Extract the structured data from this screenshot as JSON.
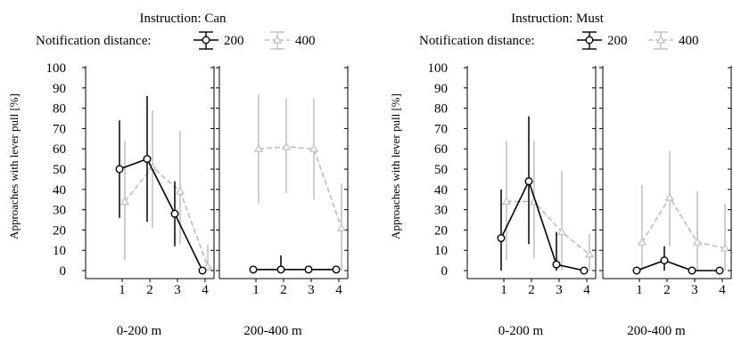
{
  "colors": {
    "s200": "#000000",
    "s400": "#bdbdbd"
  },
  "chart_data": [
    {
      "type": "line",
      "title": "Instruction: Can",
      "legend_label": "Notification distance:",
      "ylabel": "Approaches with lever pull [%]",
      "ylim": [
        0,
        100
      ],
      "yticks": [
        0,
        10,
        20,
        30,
        40,
        50,
        60,
        70,
        80,
        90,
        100
      ],
      "x": [
        1,
        2,
        3,
        4
      ],
      "panels": [
        {
          "label": "0-200 m",
          "series": [
            {
              "name": "200",
              "values": [
                50,
                55,
                28,
                0
              ],
              "lower": [
                26,
                24,
                12,
                0
              ],
              "upper": [
                74,
                86,
                44,
                0
              ]
            },
            {
              "name": "400",
              "values": [
                34,
                51,
                39,
                2
              ],
              "lower": [
                5,
                21,
                13,
                0
              ],
              "upper": [
                64,
                79,
                69,
                13
              ]
            }
          ]
        },
        {
          "label": "200-400 m",
          "series": [
            {
              "name": "200",
              "values": [
                0.5,
                0.5,
                0.5,
                0.5
              ],
              "lower": [
                0,
                0,
                0,
                0
              ],
              "upper": [
                0.5,
                7.5,
                0.5,
                0.5
              ]
            },
            {
              "name": "400",
              "values": [
                60,
                61,
                60,
                21
              ],
              "lower": [
                33,
                38,
                35,
                0
              ],
              "upper": [
                87,
                85,
                85,
                43
              ]
            }
          ]
        }
      ]
    },
    {
      "type": "line",
      "title": "Instruction: Must",
      "legend_label": "Notification distance:",
      "ylabel": "Approaches with lever pull [%]",
      "ylim": [
        0,
        100
      ],
      "yticks": [
        0,
        10,
        20,
        30,
        40,
        50,
        60,
        70,
        80,
        90,
        100
      ],
      "x": [
        1,
        2,
        3,
        4
      ],
      "panels": [
        {
          "label": "0-200 m",
          "series": [
            {
              "name": "200",
              "values": [
                16,
                44,
                3,
                0
              ],
              "lower": [
                0,
                13,
                0,
                0
              ],
              "upper": [
                40,
                76,
                19,
                0
              ]
            },
            {
              "name": "400",
              "values": [
                34,
                34,
                19,
                8
              ],
              "lower": [
                5,
                6,
                0,
                0
              ],
              "upper": [
                64,
                64,
                49,
                18
              ]
            }
          ]
        },
        {
          "label": "200-400 m",
          "series": [
            {
              "name": "200",
              "values": [
                0,
                5,
                0,
                0
              ],
              "lower": [
                0,
                0,
                0,
                0
              ],
              "upper": [
                0,
                12,
                0,
                0
              ]
            },
            {
              "name": "400",
              "values": [
                14,
                36,
                14,
                11
              ],
              "lower": [
                0,
                12,
                0,
                0
              ],
              "upper": [
                42,
                59,
                39,
                33
              ]
            }
          ]
        }
      ]
    }
  ]
}
